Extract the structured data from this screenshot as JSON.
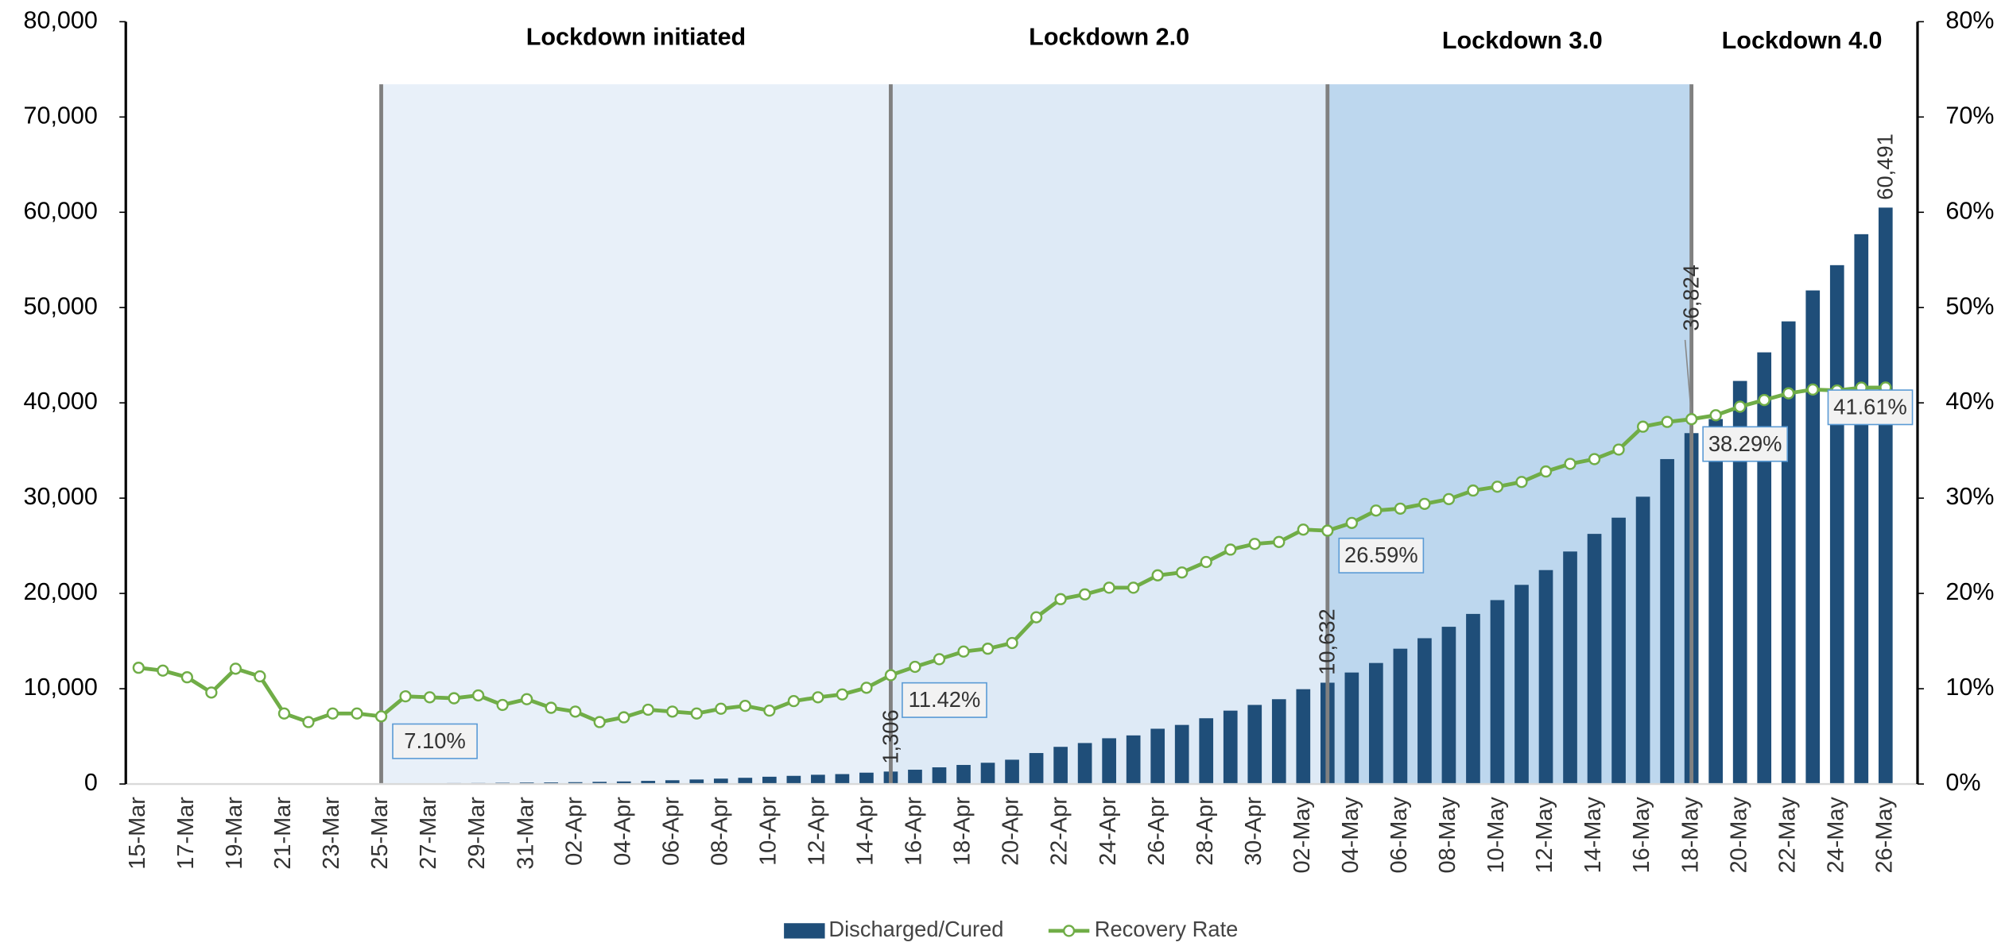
{
  "chart_data": {
    "type": "bar-line",
    "categories": [
      "15-Mar",
      null,
      "17-Mar",
      null,
      "19-Mar",
      null,
      "21-Mar",
      null,
      "23-Mar",
      null,
      "25-Mar",
      null,
      "27-Mar",
      null,
      "29-Mar",
      null,
      "31-Mar",
      null,
      "02-Apr",
      null,
      "04-Apr",
      null,
      "06-Apr",
      null,
      "08-Apr",
      null,
      "10-Apr",
      null,
      "12-Apr",
      null,
      "14-Apr",
      null,
      "16-Apr",
      null,
      "18-Apr",
      null,
      "20-Apr",
      null,
      "22-Apr",
      null,
      "24-Apr",
      null,
      "26-Apr",
      null,
      "28-Apr",
      null,
      "30-Apr",
      null,
      "02-May",
      null,
      "04-May",
      null,
      "06-May",
      null,
      "08-May",
      null,
      "10-May",
      null,
      "12-May",
      null,
      "14-May",
      null,
      "16-May",
      null,
      "18-May",
      null,
      "20-May",
      null,
      "22-May",
      null,
      "24-May",
      null,
      "26-May"
    ],
    "series": [
      {
        "name": "Discharged/Cured",
        "type": "bar",
        "color": "#1f4e79",
        "values": [
          13,
          14,
          15,
          15,
          20,
          23,
          24,
          34,
          40,
          43,
          43,
          67,
          85,
          95,
          102,
          133,
          157,
          169,
          191,
          229,
          267,
          328,
          394,
          473,
          565,
          652,
          763,
          856,
          970,
          1040,
          1190,
          1306,
          1500,
          1750,
          2000,
          2230,
          2550,
          3250,
          3900,
          4300,
          4800,
          5100,
          5800,
          6200,
          6900,
          7700,
          8300,
          8900,
          9950,
          10632,
          11700,
          12700,
          14200,
          15300,
          16500,
          17850,
          19300,
          20900,
          22450,
          24400,
          26250,
          27950,
          30150,
          34100,
          36824,
          38300,
          42300,
          45300,
          48550,
          51800,
          54450,
          57700,
          60491
        ],
        "value_labels": [
          null,
          null,
          null,
          null,
          null,
          null,
          null,
          null,
          null,
          null,
          null,
          null,
          null,
          null,
          null,
          null,
          null,
          null,
          null,
          null,
          null,
          null,
          null,
          null,
          null,
          null,
          null,
          null,
          null,
          null,
          null,
          "1,306",
          null,
          null,
          null,
          null,
          null,
          null,
          null,
          null,
          null,
          null,
          null,
          null,
          null,
          null,
          null,
          null,
          null,
          "10,632",
          null,
          null,
          null,
          null,
          null,
          null,
          null,
          null,
          null,
          null,
          null,
          null,
          null,
          null,
          "36,824",
          null,
          null,
          null,
          null,
          null,
          null,
          null,
          "60,491"
        ]
      },
      {
        "name": "Recovery Rate",
        "type": "line",
        "axis": "y2",
        "color": "#70ad47",
        "values": [
          12.2,
          11.9,
          11.2,
          9.6,
          12.1,
          11.3,
          7.4,
          6.5,
          7.4,
          7.4,
          7.1,
          9.2,
          9.1,
          9.0,
          9.3,
          8.3,
          8.9,
          8.0,
          7.6,
          6.5,
          7.0,
          7.8,
          7.6,
          7.4,
          7.9,
          8.2,
          7.7,
          8.7,
          9.1,
          9.4,
          10.1,
          11.42,
          12.3,
          13.1,
          13.9,
          14.2,
          14.8,
          17.5,
          19.4,
          19.9,
          20.6,
          20.6,
          21.9,
          22.2,
          23.3,
          24.6,
          25.2,
          25.4,
          26.7,
          26.59,
          27.4,
          28.7,
          28.9,
          29.4,
          29.9,
          30.8,
          31.2,
          31.7,
          32.8,
          33.6,
          34.1,
          35.1,
          37.5,
          38.0,
          38.29,
          38.7,
          39.6,
          40.3,
          41.0,
          41.4,
          41.3,
          41.6,
          41.61
        ],
        "value_labels": [
          null,
          null,
          null,
          null,
          null,
          null,
          null,
          null,
          null,
          null,
          "7.10%",
          null,
          null,
          null,
          null,
          null,
          null,
          null,
          null,
          null,
          null,
          null,
          null,
          null,
          null,
          null,
          null,
          null,
          null,
          null,
          null,
          "11.42%",
          null,
          null,
          null,
          null,
          null,
          null,
          null,
          null,
          null,
          null,
          null,
          null,
          null,
          null,
          null,
          null,
          null,
          "26.59%",
          null,
          null,
          null,
          null,
          null,
          null,
          null,
          null,
          null,
          null,
          null,
          null,
          null,
          null,
          "38.29%",
          null,
          null,
          null,
          null,
          null,
          null,
          null,
          "41.61%"
        ]
      }
    ],
    "annotations": [
      "Lockdown initiated",
      "Lockdown 2.0",
      "Lockdown 3.0",
      "Lockdown 4.0"
    ],
    "ylim": [
      0,
      80000
    ],
    "yticks": [
      0,
      {
        "value": 10000,
        "label": "10,000"
      },
      {
        "value": 20000,
        "label": "20,000"
      },
      {
        "value": 30000,
        "label": "30,000"
      },
      {
        "value": 40000,
        "label": "40,000"
      },
      {
        "value": 50000,
        "label": "50,000"
      },
      {
        "value": 60000,
        "label": "60,000"
      },
      {
        "value": 70000,
        "label": "70,000"
      },
      {
        "value": 80000,
        "label": "80,000"
      }
    ],
    "y2lim": [
      0,
      80
    ],
    "y2ticks": [
      {
        "value": 0,
        "label": "0%"
      },
      {
        "value": 10,
        "label": "10%"
      },
      {
        "value": 20,
        "label": "20%"
      },
      {
        "value": 30,
        "label": "30%"
      },
      {
        "value": 40,
        "label": "40%"
      },
      {
        "value": 50,
        "label": "50%"
      },
      {
        "value": 60,
        "label": "60%"
      },
      {
        "value": 70,
        "label": "70%"
      },
      {
        "value": 80,
        "label": "80%"
      }
    ],
    "legend": "bottom"
  }
}
